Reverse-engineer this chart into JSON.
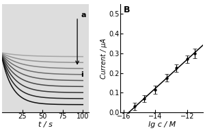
{
  "panel_A": {
    "xlabel": "t / s",
    "x_ticks": [
      25,
      50,
      75,
      100
    ],
    "x_lim": [
      0,
      107
    ],
    "y_lim": [
      0,
      1.4
    ],
    "label_a": "a",
    "label_i": "i",
    "n_curves": 9,
    "background": "#e8e8e8"
  },
  "panel_B": {
    "xlabel": "lg c / M",
    "ylabel": "Current / μA",
    "label": "B",
    "x_data": [
      -15.3,
      -14.7,
      -14.0,
      -13.3,
      -12.7,
      -12.0,
      -11.5
    ],
    "y_data": [
      0.03,
      0.07,
      0.115,
      0.175,
      0.225,
      0.27,
      0.3
    ],
    "y_err": [
      0.02,
      0.018,
      0.022,
      0.02,
      0.018,
      0.02,
      0.025
    ],
    "x_lim": [
      -16.2,
      -11.0
    ],
    "y_lim": [
      0,
      0.55
    ],
    "x_ticks": [
      -16,
      -14,
      -12
    ],
    "y_ticks": [
      0.0,
      0.1,
      0.2,
      0.3,
      0.4,
      0.5
    ]
  }
}
